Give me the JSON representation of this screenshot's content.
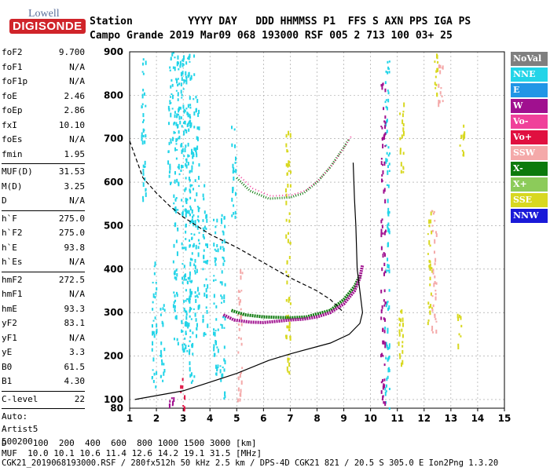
{
  "logo": {
    "line1": "Lowell",
    "line2": "DIGISONDE"
  },
  "header": {
    "labels": "Station         YYYY DAY   DDD HHMMSS P1  FFS S AXN PPS IGA PS",
    "values": "Campo Grande 2019 Mar09 068 193000 RSF 005 2 713 100 03+ 25"
  },
  "params": {
    "group1": [
      {
        "name": "foF2",
        "value": "9.700"
      },
      {
        "name": "foF1",
        "value": "N/A"
      },
      {
        "name": "foF1p",
        "value": "N/A"
      },
      {
        "name": "foE",
        "value": "2.46"
      },
      {
        "name": "foEp",
        "value": "2.86"
      },
      {
        "name": "fxI",
        "value": "10.10"
      },
      {
        "name": "foEs",
        "value": "N/A"
      },
      {
        "name": "fmin",
        "value": "1.95"
      }
    ],
    "group2": [
      {
        "name": "MUF(D)",
        "value": "31.53"
      },
      {
        "name": "M(D)",
        "value": "3.25"
      },
      {
        "name": "D",
        "value": "N/A"
      }
    ],
    "group3": [
      {
        "name": "h`F",
        "value": "275.0"
      },
      {
        "name": "h`F2",
        "value": "275.0"
      },
      {
        "name": "h`E",
        "value": "93.8"
      },
      {
        "name": "h`Es",
        "value": "N/A"
      }
    ],
    "group4": [
      {
        "name": "hmF2",
        "value": "272.5"
      },
      {
        "name": "hmF1",
        "value": "N/A"
      },
      {
        "name": "hmE",
        "value": "93.3"
      },
      {
        "name": "yF2",
        "value": "83.1"
      },
      {
        "name": "yF1",
        "value": "N/A"
      },
      {
        "name": "yE",
        "value": "3.3"
      },
      {
        "name": "B0",
        "value": "61.5"
      },
      {
        "name": "B1",
        "value": "4.30"
      }
    ],
    "clevel": {
      "name": "C-level",
      "value": "22"
    },
    "auto": [
      "Auto:",
      "Artist5",
      "500200"
    ]
  },
  "legend": [
    {
      "label": "NoVal",
      "color": "#7f7f7f"
    },
    {
      "label": "NNE",
      "color": "#22d4e8"
    },
    {
      "label": "E",
      "color": "#2196e6"
    },
    {
      "label": "W",
      "color": "#a0108f"
    },
    {
      "label": "Vo-",
      "color": "#f0409a"
    },
    {
      "label": "Vo+",
      "color": "#e01040"
    },
    {
      "label": "SSW",
      "color": "#f4a9a9"
    },
    {
      "label": "X-",
      "color": "#0c7a0c"
    },
    {
      "label": "X+",
      "color": "#8ccb5a"
    },
    {
      "label": "SSE",
      "color": "#d8d820"
    },
    {
      "label": "NNW",
      "color": "#1a1ad8"
    }
  ],
  "footer": {
    "line1": "D     100  200  400  600  800 1000 1500 3000 [km]",
    "line2": "MUF  10.0 10.1 10.6 11.4 12.6 14.2 19.1 31.5 [MHz]",
    "line3": "CGK21_2019068193000.RSF / 280fx512h 50 kHz 2.5 km / DPS-4D CGK21 821 / 20.5 S 305.0 E Ion2Png 1.3.20"
  },
  "chart_data": {
    "type": "scatter",
    "xlim": [
      1,
      15
    ],
    "ylim": [
      80,
      900
    ],
    "x_ticks": [
      "1",
      "2",
      "3",
      "4",
      "5",
      "6",
      "7",
      "8",
      "9",
      "10",
      "11",
      "12",
      "13",
      "14",
      "15"
    ],
    "y_ticks": [
      "100",
      "200",
      "300",
      "400",
      "500",
      "600",
      "700",
      "800",
      "900"
    ],
    "y_bottom_label": "80",
    "grid": true,
    "ordinary_trace": [
      [
        4.5,
        295
      ],
      [
        4.9,
        283
      ],
      [
        5.5,
        278
      ],
      [
        6,
        277
      ],
      [
        6.5,
        280
      ],
      [
        7,
        283
      ],
      [
        7.5,
        285
      ],
      [
        8,
        290
      ],
      [
        8.5,
        300
      ],
      [
        9,
        320
      ],
      [
        9.4,
        350
      ],
      [
        9.6,
        380
      ],
      [
        9.7,
        410
      ]
    ],
    "extraordinary_trace": [
      [
        4.8,
        305
      ],
      [
        5.3,
        295
      ],
      [
        6,
        290
      ],
      [
        7,
        288
      ],
      [
        7.6,
        290
      ],
      [
        8.5,
        305
      ],
      [
        9,
        330
      ],
      [
        9.4,
        360
      ],
      [
        9.6,
        385
      ]
    ],
    "upper_ordinary_trace": [
      [
        5,
        610
      ],
      [
        5.5,
        580
      ],
      [
        6.2,
        562
      ],
      [
        7,
        565
      ],
      [
        7.5,
        575
      ],
      [
        8,
        600
      ],
      [
        8.5,
        635
      ],
      [
        9,
        680
      ],
      [
        9.2,
        700
      ]
    ],
    "profile_line": [
      [
        1.2,
        100
      ],
      [
        3,
        120
      ],
      [
        5,
        160
      ],
      [
        6.2,
        190
      ],
      [
        7,
        205
      ],
      [
        8.5,
        230
      ],
      [
        9.2,
        250
      ],
      [
        9.6,
        275
      ],
      [
        9.7,
        300
      ],
      [
        9.5,
        400
      ],
      [
        9.45,
        500
      ],
      [
        9.4,
        560
      ],
      [
        9.35,
        645
      ]
    ],
    "muf_line_dashed": [
      [
        1,
        695
      ],
      [
        1.5,
        610
      ],
      [
        2,
        575
      ],
      [
        2.5,
        545
      ],
      [
        3,
        520
      ],
      [
        3.5,
        500
      ],
      [
        4,
        480
      ],
      [
        5,
        450
      ],
      [
        6,
        415
      ],
      [
        7,
        380
      ],
      [
        8,
        350
      ],
      [
        8.5,
        330
      ],
      [
        9,
        300
      ]
    ],
    "scatter_columns": [
      {
        "x": 1.5,
        "y0": 560,
        "y1": 890,
        "color": "#22d4e8"
      },
      {
        "x": 1.9,
        "y0": 130,
        "y1": 420,
        "color": "#22d4e8"
      },
      {
        "x": 2.2,
        "y0": 140,
        "y1": 330,
        "color": "#22d4e8"
      },
      {
        "x": 2.5,
        "y0": 600,
        "y1": 900,
        "color": "#22d4e8"
      },
      {
        "x": 2.7,
        "y0": 230,
        "y1": 900,
        "color": "#22d4e8"
      },
      {
        "x": 2.85,
        "y0": 600,
        "y1": 900,
        "color": "#22d4e8"
      },
      {
        "x": 3.0,
        "y0": 210,
        "y1": 900,
        "color": "#22d4e8"
      },
      {
        "x": 3.15,
        "y0": 200,
        "y1": 900,
        "color": "#22d4e8"
      },
      {
        "x": 3.3,
        "y0": 140,
        "y1": 900,
        "color": "#22d4e8"
      },
      {
        "x": 3.5,
        "y0": 250,
        "y1": 800,
        "color": "#22d4e8"
      },
      {
        "x": 3.8,
        "y0": 240,
        "y1": 600,
        "color": "#22d4e8"
      },
      {
        "x": 4.2,
        "y0": 160,
        "y1": 520,
        "color": "#22d4e8"
      },
      {
        "x": 4.45,
        "y0": 100,
        "y1": 540,
        "color": "#22d4e8"
      },
      {
        "x": 4.85,
        "y0": 520,
        "y1": 730,
        "color": "#22d4e8"
      },
      {
        "x": 10.6,
        "y0": 80,
        "y1": 900,
        "color": "#22d4e8"
      },
      {
        "x": 10.45,
        "y0": 90,
        "y1": 850,
        "color": "#a0108f"
      },
      {
        "x": 11.1,
        "y0": 180,
        "y1": 350,
        "color": "#d8d820"
      },
      {
        "x": 11.15,
        "y0": 620,
        "y1": 790,
        "color": "#d8d820"
      },
      {
        "x": 12.2,
        "y0": 260,
        "y1": 540,
        "color": "#d8d820"
      },
      {
        "x": 12.35,
        "y0": 250,
        "y1": 540,
        "color": "#f4a9a9"
      },
      {
        "x": 12.4,
        "y0": 780,
        "y1": 900,
        "color": "#d8d820"
      },
      {
        "x": 12.6,
        "y0": 780,
        "y1": 900,
        "color": "#f4a9a9"
      },
      {
        "x": 13.4,
        "y0": 650,
        "y1": 760,
        "color": "#d8d820"
      },
      {
        "x": 13.3,
        "y0": 220,
        "y1": 310,
        "color": "#d8d820"
      },
      {
        "x": 6.9,
        "y0": 150,
        "y1": 720,
        "color": "#d8d820"
      },
      {
        "x": 5.1,
        "y0": 100,
        "y1": 400,
        "color": "#f4a9a9"
      },
      {
        "x": 2.55,
        "y0": 80,
        "y1": 110,
        "color": "#a0108f"
      },
      {
        "x": 2.95,
        "y0": 80,
        "y1": 150,
        "color": "#e01040"
      }
    ]
  }
}
